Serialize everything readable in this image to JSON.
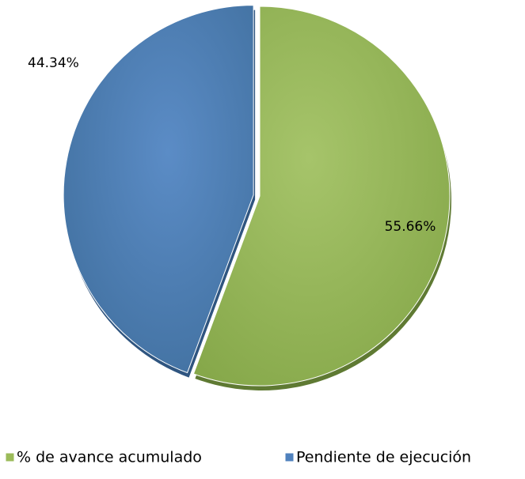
{
  "chart_data": {
    "type": "pie",
    "categories": [
      "% de avance acumulado",
      "Pendiente de ejecución"
    ],
    "values": [
      55.66,
      44.34
    ],
    "value_labels": [
      "55.66%",
      "44.34%"
    ],
    "colors": [
      "#9bbb59",
      "#4f81bd"
    ],
    "legend": "bottom"
  }
}
